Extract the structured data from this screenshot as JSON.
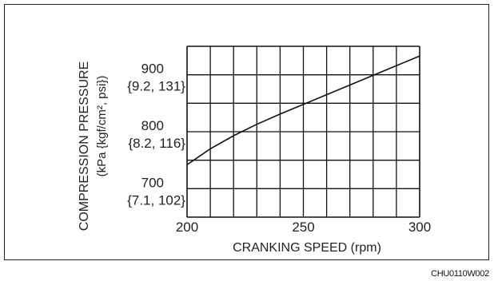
{
  "chart_data": {
    "type": "line",
    "title": "",
    "xlabel": "CRANKING SPEED (rpm)",
    "ylabel_line1": "COMPRESSION PRESSURE",
    "ylabel_line2": "(kPa {kgf/cm², psi})",
    "xlim": [
      200,
      300
    ],
    "ylim": [
      650,
      950
    ],
    "grid": true,
    "x_ticks": [
      {
        "value": 200,
        "label": "200"
      },
      {
        "value": 250,
        "label": "250"
      },
      {
        "value": 300,
        "label": "300"
      }
    ],
    "y_ticks": [
      {
        "value": 900,
        "label": "900",
        "sublabel": "{9.2, 131}"
      },
      {
        "value": 800,
        "label": "800",
        "sublabel": "{8.2, 116}"
      },
      {
        "value": 700,
        "label": "700",
        "sublabel": "{7.1, 102}"
      }
    ],
    "series": [
      {
        "x": [
          200,
          210,
          220,
          230,
          240,
          250,
          260,
          270,
          280,
          290,
          300
        ],
        "values": [
          742,
          770,
          793,
          813,
          831,
          848,
          865,
          882,
          899,
          916,
          933
        ]
      }
    ],
    "line_color": "#111111",
    "grid_color": "#111111"
  },
  "figure_code": "CHU0110W002"
}
